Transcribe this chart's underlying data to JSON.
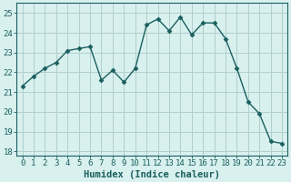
{
  "x": [
    0,
    1,
    2,
    3,
    4,
    5,
    6,
    7,
    8,
    9,
    10,
    11,
    12,
    13,
    14,
    15,
    16,
    17,
    18,
    19,
    20,
    21,
    22,
    23
  ],
  "y": [
    21.3,
    21.8,
    22.2,
    22.5,
    23.1,
    23.2,
    23.3,
    21.6,
    22.1,
    21.5,
    22.2,
    24.4,
    24.7,
    24.1,
    24.8,
    23.9,
    24.5,
    24.5,
    23.7,
    22.2,
    20.5,
    19.9,
    18.5,
    18.4
  ],
  "line_color": "#1a5f5f",
  "marker": "D",
  "marker_size": 2.5,
  "bg_color": "#d8f0ee",
  "grid_color": "#b0d0cc",
  "xlabel": "Humidex (Indice chaleur)",
  "xlim": [
    -0.5,
    23.5
  ],
  "ylim": [
    17.8,
    25.5
  ],
  "yticks": [
    18,
    19,
    20,
    21,
    22,
    23,
    24,
    25
  ],
  "xtick_labels": [
    "0",
    "1",
    "2",
    "3",
    "4",
    "5",
    "6",
    "7",
    "8",
    "9",
    "10",
    "11",
    "12",
    "13",
    "14",
    "15",
    "16",
    "17",
    "18",
    "19",
    "20",
    "21",
    "22",
    "23"
  ],
  "xlabel_fontsize": 7.5,
  "tick_fontsize": 6.5,
  "linewidth": 1.0
}
